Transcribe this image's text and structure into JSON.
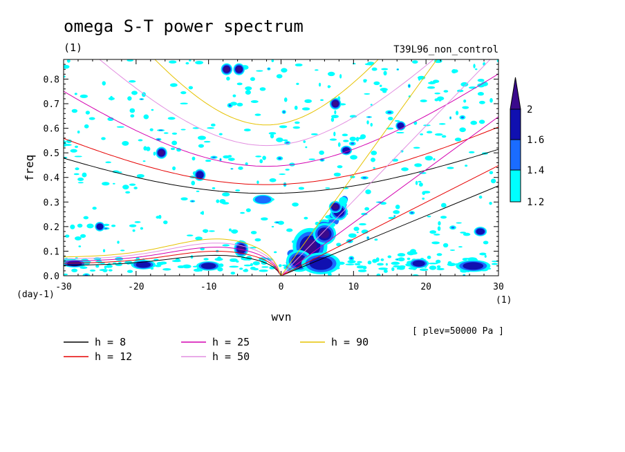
{
  "chart_data": {
    "type": "heatmap",
    "title": "omega S-T power spectrum",
    "units_left": "(1)",
    "dataset_label": "T39L96_non_control",
    "xlabel": "wvn",
    "ylabel": "freq",
    "y_units": "(day-1)",
    "x_units": "(1)",
    "plev_label": "[ plev=50000 Pa ]",
    "xlim": [
      -30,
      30
    ],
    "ylim": [
      0,
      0.88
    ],
    "xticks": [
      -30,
      -20,
      -10,
      0,
      10,
      20,
      30
    ],
    "xtick_labels": [
      "-30",
      "-20",
      "-10",
      "0",
      "10",
      "20",
      "30"
    ],
    "yticks": [
      0,
      0.1,
      0.2,
      0.3,
      0.4,
      0.5,
      0.6,
      0.7,
      0.8
    ],
    "ytick_labels": [
      "0.0",
      "0.1",
      "0.2",
      "0.3",
      "0.4",
      "0.5",
      "0.6",
      "0.7",
      "0.8"
    ],
    "colorbar": {
      "levels": [
        1.2,
        1.4,
        1.6,
        2
      ],
      "labels": [
        "1.2",
        "1.4",
        "1.6",
        "2"
      ],
      "colors": [
        "#00ffff",
        "#1a6cff",
        "#1010b0",
        "#3a0a8c"
      ]
    },
    "dispersion_curves": [
      {
        "h": 8,
        "label": "h =  8",
        "color": "#000000"
      },
      {
        "h": 12,
        "label": "h = 12",
        "color": "#e60000"
      },
      {
        "h": 25,
        "label": "h = 25",
        "color": "#d400b0"
      },
      {
        "h": 50,
        "label": "h = 50",
        "color": "#e28ee0"
      },
      {
        "h": 90,
        "label": "h = 90",
        "color": "#e6c200"
      }
    ],
    "blobs": [
      {
        "x": 4.0,
        "y": 0.12,
        "rx": 2.2,
        "ry": 0.07,
        "level": 3
      },
      {
        "x": 6.0,
        "y": 0.17,
        "rx": 1.4,
        "ry": 0.04,
        "level": 3
      },
      {
        "x": 2.5,
        "y": 0.06,
        "rx": 1.6,
        "ry": 0.04,
        "level": 3
      },
      {
        "x": 8.0,
        "y": 0.26,
        "rx": 1.0,
        "ry": 0.03,
        "level": 2
      },
      {
        "x": 7.5,
        "y": 0.28,
        "rx": 0.7,
        "ry": 0.02,
        "level": 3
      },
      {
        "x": 5.5,
        "y": 0.05,
        "rx": 2.5,
        "ry": 0.04,
        "level": 2
      },
      {
        "x": 26.5,
        "y": 0.04,
        "rx": 2.2,
        "ry": 0.02,
        "level": 2
      },
      {
        "x": 19,
        "y": 0.05,
        "rx": 1.2,
        "ry": 0.015,
        "level": 2
      },
      {
        "x": -5.5,
        "y": 0.11,
        "rx": 0.8,
        "ry": 0.03,
        "level": 3
      },
      {
        "x": -10,
        "y": 0.04,
        "rx": 1.5,
        "ry": 0.015,
        "level": 2
      },
      {
        "x": -19,
        "y": 0.045,
        "rx": 1.5,
        "ry": 0.015,
        "level": 2
      },
      {
        "x": -25,
        "y": 0.2,
        "rx": 0.5,
        "ry": 0.015,
        "level": 2
      },
      {
        "x": -7.5,
        "y": 0.84,
        "rx": 0.6,
        "ry": 0.02,
        "level": 3
      },
      {
        "x": -5.8,
        "y": 0.84,
        "rx": 0.6,
        "ry": 0.02,
        "level": 3
      },
      {
        "x": -16.5,
        "y": 0.5,
        "rx": 0.6,
        "ry": 0.02,
        "level": 3
      },
      {
        "x": 7.5,
        "y": 0.7,
        "rx": 0.6,
        "ry": 0.02,
        "level": 3
      },
      {
        "x": 9,
        "y": 0.51,
        "rx": 0.6,
        "ry": 0.015,
        "level": 2
      },
      {
        "x": -11.2,
        "y": 0.41,
        "rx": 0.6,
        "ry": 0.02,
        "level": 2
      },
      {
        "x": -2.5,
        "y": 0.31,
        "rx": 1.2,
        "ry": 0.015,
        "level": 1
      },
      {
        "x": 16.5,
        "y": 0.61,
        "rx": 0.5,
        "ry": 0.015,
        "level": 2
      },
      {
        "x": -28.5,
        "y": 0.05,
        "rx": 1.5,
        "ry": 0.012,
        "level": 2
      },
      {
        "x": 27.5,
        "y": 0.18,
        "rx": 0.7,
        "ry": 0.015,
        "level": 2
      }
    ]
  },
  "legend": {
    "items": [
      {
        "label": "h =  8",
        "color": "#000000"
      },
      {
        "label": "h = 25",
        "color": "#d400b0"
      },
      {
        "label": "h = 90",
        "color": "#e6c200"
      },
      {
        "label": "h = 12",
        "color": "#e60000"
      },
      {
        "label": "h = 50",
        "color": "#e28ee0"
      }
    ]
  }
}
